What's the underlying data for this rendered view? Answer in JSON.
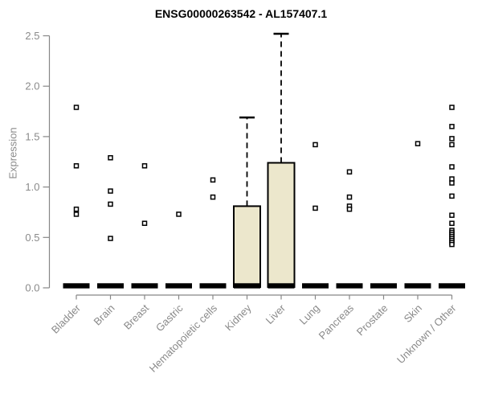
{
  "chart_data": {
    "type": "boxplot",
    "title": "ENSG00000263542 - AL157407.1",
    "ylabel": "Expression",
    "xlabel": "",
    "ylim": [
      0,
      2.5
    ],
    "yticks": [
      "0.0",
      "0.5",
      "1.0",
      "1.5",
      "2.0",
      "2.5"
    ],
    "grid": false,
    "legend": null,
    "marker": "open-square",
    "categories": [
      "Bladder",
      "Brain",
      "Breast",
      "Gastric",
      "Hematopoietic cells",
      "Kidney",
      "Liver",
      "Lung",
      "Pancreas",
      "Prostate",
      "Skin",
      "Unknown / Other"
    ],
    "series": [
      {
        "category": "Bladder",
        "median": 0.02,
        "q1": 0,
        "q3": null,
        "whisker_max": null,
        "outliers": [
          1.79,
          1.21,
          0.78,
          0.73
        ]
      },
      {
        "category": "Brain",
        "median": 0.02,
        "q1": 0,
        "q3": null,
        "whisker_max": null,
        "outliers": [
          1.29,
          0.96,
          0.83,
          0.49
        ]
      },
      {
        "category": "Breast",
        "median": 0.02,
        "q1": 0,
        "q3": null,
        "whisker_max": null,
        "outliers": [
          1.21,
          0.64
        ]
      },
      {
        "category": "Gastric",
        "median": 0.02,
        "q1": 0,
        "q3": null,
        "whisker_max": null,
        "outliers": [
          0.73
        ]
      },
      {
        "category": "Hematopoietic cells",
        "median": 0.02,
        "q1": 0,
        "q3": null,
        "whisker_max": null,
        "outliers": [
          1.07,
          0.9
        ]
      },
      {
        "category": "Kidney",
        "median": 0.02,
        "q1": 0,
        "q3": 0.81,
        "whisker_max": 1.69,
        "outliers": []
      },
      {
        "category": "Liver",
        "median": 0.02,
        "q1": 0,
        "q3": 1.24,
        "whisker_max": 2.52,
        "outliers": []
      },
      {
        "category": "Lung",
        "median": 0.02,
        "q1": 0,
        "q3": null,
        "whisker_max": null,
        "outliers": [
          1.42,
          0.79
        ]
      },
      {
        "category": "Pancreas",
        "median": 0.02,
        "q1": 0,
        "q3": null,
        "whisker_max": null,
        "outliers": [
          1.15,
          0.9,
          0.81,
          0.78
        ]
      },
      {
        "category": "Prostate",
        "median": 0.02,
        "q1": 0,
        "q3": null,
        "whisker_max": null,
        "outliers": []
      },
      {
        "category": "Skin",
        "median": 0.02,
        "q1": 0,
        "q3": null,
        "whisker_max": null,
        "outliers": [
          1.43
        ]
      },
      {
        "category": "Unknown / Other",
        "median": 0.02,
        "q1": 0,
        "q3": null,
        "whisker_max": null,
        "outliers": [
          1.79,
          1.6,
          1.48,
          1.42,
          1.2,
          1.08,
          1.04,
          0.91,
          0.72,
          0.64,
          0.57,
          0.55,
          0.53,
          0.51,
          0.49,
          0.47,
          0.45,
          0.43
        ]
      }
    ]
  },
  "colors": {
    "box_fill": "#ECE7CC",
    "box_border": "#000000",
    "median_bar": "#000000",
    "whisker": "#000000",
    "outlier_stroke": "#000000",
    "outlier_fill": "#FFFFFF",
    "axis": "#878787",
    "text": "#8A8A8A",
    "title_text": "#000000",
    "background": "#FFFFFF"
  }
}
